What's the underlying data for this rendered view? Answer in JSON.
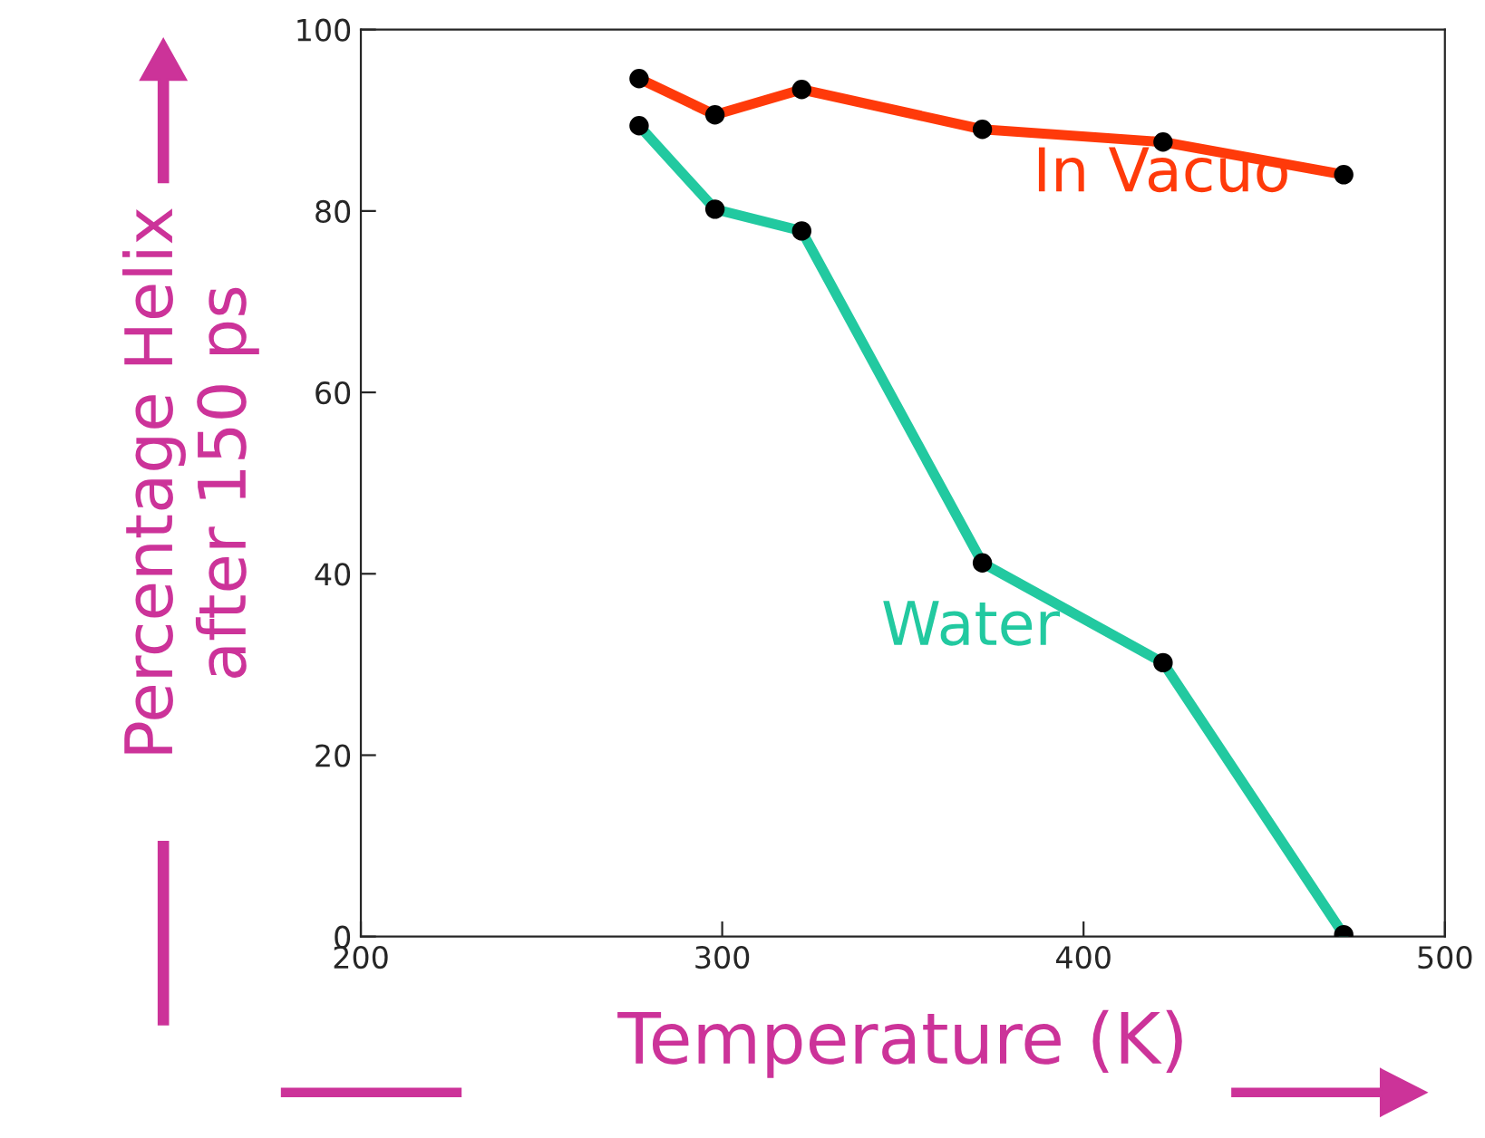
{
  "chart_data": {
    "type": "line",
    "xlabel": "Temperature (K)",
    "ylabel": "Percentage Helix\nafter 150 ps",
    "series": [
      {
        "name": "In Vacuo",
        "color": "#ff3a0a",
        "x": [
          277,
          298,
          322,
          372,
          422,
          472
        ],
        "values": [
          94.6,
          90.6,
          93.4,
          89,
          87.6,
          84
        ]
      },
      {
        "name": "Water",
        "color": "#22c9a0",
        "x": [
          277,
          298,
          322,
          372,
          422,
          472
        ],
        "values": [
          89.4,
          80.2,
          77.8,
          41.2,
          30.2,
          0.2
        ]
      }
    ],
    "xlim": [
      200,
      500
    ],
    "xticks": [
      200,
      300,
      400,
      500
    ],
    "ylim": [
      0,
      100
    ],
    "yticks": [
      0,
      20,
      40,
      60,
      80,
      100
    ],
    "grid": false,
    "legend": false,
    "marker": "circle",
    "line_style": "solid"
  }
}
